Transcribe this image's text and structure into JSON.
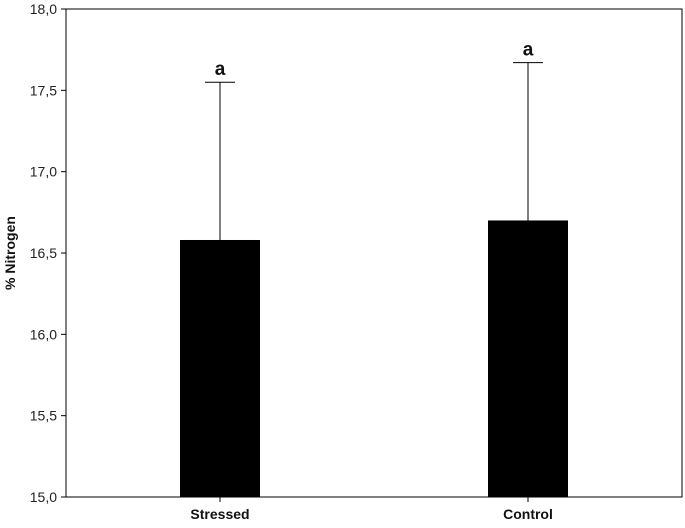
{
  "chart_data": {
    "type": "bar",
    "categories": [
      "Stressed",
      "Control"
    ],
    "values": [
      16.58,
      16.7
    ],
    "error_upper": [
      17.55,
      17.67
    ],
    "significance_labels": [
      "a",
      "a"
    ],
    "ylabel": "% Nitrogen",
    "xlabel": "",
    "ylim": [
      15.0,
      18.0
    ],
    "yticks": [
      15.0,
      15.5,
      16.0,
      16.5,
      17.0,
      17.5,
      18.0
    ],
    "ytick_labels": [
      "15,0",
      "15,5",
      "16,0",
      "16,5",
      "17,0",
      "17,5",
      "18,0"
    ],
    "grid": false,
    "bar_color": "#000000"
  }
}
